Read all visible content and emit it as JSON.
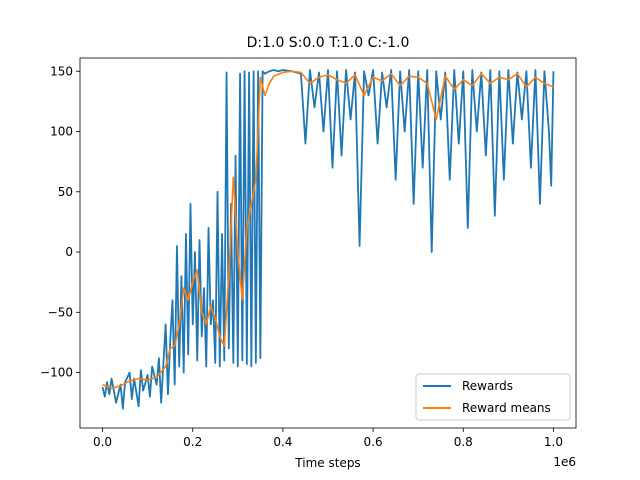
{
  "chart_data": {
    "type": "line",
    "title": "D:1.0 S:0.0 T:1.0 C:-1.0",
    "xlabel": "Time steps",
    "ylabel": "",
    "x_offset_label": "1e6",
    "xlim": [
      -0.05,
      1.05
    ],
    "ylim": [
      -146,
      161
    ],
    "xticks": [
      0.0,
      0.2,
      0.4,
      0.6,
      0.8,
      1.0
    ],
    "xtick_labels": [
      "0.0",
      "0.2",
      "0.4",
      "0.6",
      "0.8",
      "1.0"
    ],
    "yticks": [
      -100,
      -50,
      0,
      50,
      100,
      150
    ],
    "ytick_labels": [
      "−100",
      "−50",
      "0",
      "50",
      "100",
      "150"
    ],
    "grid": false,
    "legend_position": "lower-right",
    "series": [
      {
        "name": "Rewards",
        "color": "#1f77b4",
        "x": [
          0.0,
          0.005,
          0.01,
          0.015,
          0.02,
          0.03,
          0.04,
          0.045,
          0.05,
          0.06,
          0.065,
          0.07,
          0.08,
          0.085,
          0.09,
          0.1,
          0.105,
          0.11,
          0.12,
          0.125,
          0.13,
          0.14,
          0.145,
          0.15,
          0.155,
          0.16,
          0.165,
          0.17,
          0.175,
          0.18,
          0.185,
          0.19,
          0.195,
          0.2,
          0.205,
          0.21,
          0.215,
          0.22,
          0.225,
          0.23,
          0.235,
          0.24,
          0.245,
          0.25,
          0.255,
          0.26,
          0.265,
          0.27,
          0.275,
          0.28,
          0.285,
          0.29,
          0.295,
          0.3,
          0.305,
          0.31,
          0.315,
          0.32,
          0.325,
          0.33,
          0.335,
          0.34,
          0.345,
          0.35,
          0.355,
          0.36,
          0.37,
          0.38,
          0.39,
          0.4,
          0.42,
          0.44,
          0.45,
          0.46,
          0.47,
          0.48,
          0.49,
          0.5,
          0.51,
          0.52,
          0.53,
          0.54,
          0.55,
          0.56,
          0.57,
          0.58,
          0.59,
          0.6,
          0.61,
          0.62,
          0.63,
          0.64,
          0.65,
          0.66,
          0.67,
          0.68,
          0.69,
          0.7,
          0.71,
          0.72,
          0.73,
          0.74,
          0.75,
          0.76,
          0.77,
          0.78,
          0.79,
          0.8,
          0.81,
          0.82,
          0.83,
          0.84,
          0.85,
          0.86,
          0.87,
          0.88,
          0.89,
          0.9,
          0.91,
          0.92,
          0.93,
          0.94,
          0.95,
          0.96,
          0.97,
          0.98,
          0.99,
          0.995,
          1.0
        ],
        "values": [
          -112,
          -120,
          -108,
          -118,
          -105,
          -125,
          -110,
          -130,
          -108,
          -100,
          -122,
          -105,
          -128,
          -98,
          -115,
          -102,
          -120,
          -95,
          -110,
          -88,
          -125,
          -60,
          -118,
          -75,
          -40,
          -110,
          5,
          -95,
          -20,
          -100,
          15,
          -85,
          40,
          -60,
          0,
          -90,
          10,
          -70,
          -30,
          -95,
          20,
          -60,
          -40,
          -92,
          50,
          -95,
          15,
          -90,
          149,
          -80,
          40,
          -92,
          80,
          -95,
          148,
          -90,
          150,
          -93,
          149,
          -95,
          150,
          -92,
          150,
          -88,
          150,
          148,
          150,
          151,
          150,
          151,
          150,
          148,
          90,
          151,
          120,
          149,
          100,
          151,
          70,
          150,
          80,
          151,
          110,
          149,
          5,
          150,
          130,
          151,
          90,
          149,
          120,
          151,
          60,
          150,
          100,
          151,
          40,
          150,
          70,
          151,
          0,
          150,
          110,
          149,
          60,
          151,
          90,
          150,
          20,
          151,
          100,
          149,
          80,
          151,
          30,
          150,
          60,
          151,
          90,
          149,
          110,
          150,
          70,
          151,
          40,
          150,
          100,
          55,
          150
        ],
        "points_note": ""
      },
      {
        "name": "Reward means",
        "color": "#ff7f0e",
        "x": [
          0.0,
          0.02,
          0.04,
          0.06,
          0.08,
          0.1,
          0.12,
          0.14,
          0.15,
          0.16,
          0.17,
          0.18,
          0.19,
          0.2,
          0.21,
          0.22,
          0.23,
          0.24,
          0.25,
          0.26,
          0.27,
          0.28,
          0.29,
          0.3,
          0.31,
          0.32,
          0.33,
          0.34,
          0.35,
          0.36,
          0.37,
          0.38,
          0.4,
          0.42,
          0.44,
          0.46,
          0.48,
          0.5,
          0.52,
          0.54,
          0.56,
          0.58,
          0.6,
          0.62,
          0.64,
          0.66,
          0.68,
          0.7,
          0.72,
          0.74,
          0.76,
          0.78,
          0.8,
          0.82,
          0.84,
          0.86,
          0.88,
          0.9,
          0.92,
          0.94,
          0.96,
          0.98,
          1.0
        ],
        "values": [
          -110,
          -113,
          -111,
          -107,
          -105,
          -106,
          -104,
          -95,
          -80,
          -78,
          -60,
          -30,
          -40,
          -25,
          -15,
          -50,
          -60,
          -45,
          -55,
          -70,
          -78,
          -20,
          62,
          0,
          -40,
          20,
          40,
          60,
          145,
          130,
          140,
          146,
          149,
          150,
          149,
          140,
          145,
          147,
          143,
          140,
          147,
          130,
          145,
          142,
          148,
          138,
          146,
          145,
          140,
          110,
          146,
          135,
          143,
          138,
          148,
          140,
          145,
          143,
          148,
          137,
          145,
          140,
          137
        ]
      }
    ]
  }
}
